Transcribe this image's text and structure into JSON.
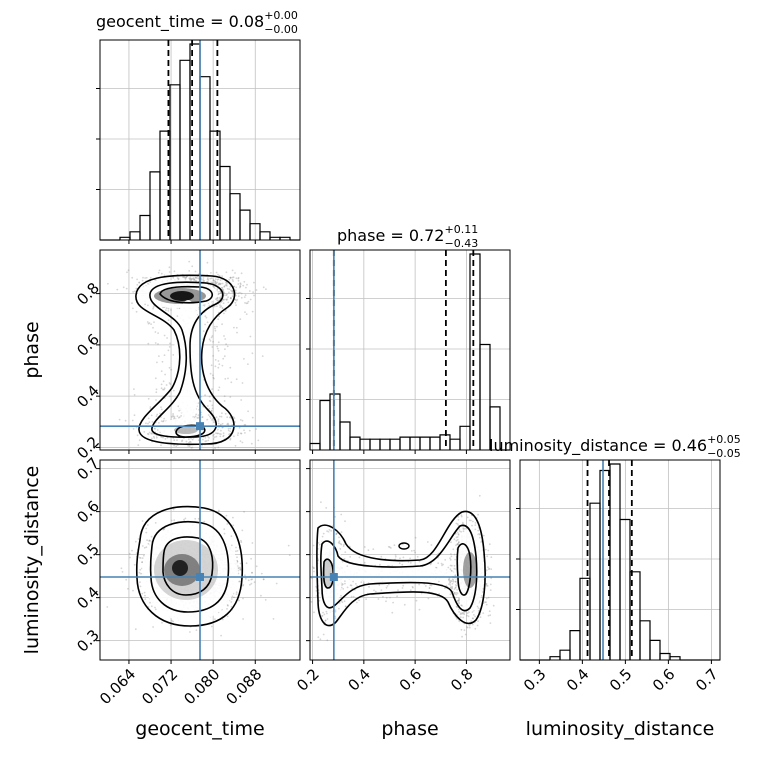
{
  "colors": {
    "truth": "#4682b4",
    "hist": "#000000",
    "grid": "#c0c0c0",
    "samples": "#8a8a8a"
  },
  "titles": [
    {
      "param": "geocent_time",
      "median": "0.08",
      "plus": "+0.00",
      "minus": "−0.00"
    },
    {
      "param": "phase",
      "median": "0.72",
      "plus": "+0.11",
      "minus": "−0.43"
    },
    {
      "param": "luminosity_distance",
      "median": "0.46",
      "plus": "+0.05",
      "minus": "−0.05"
    }
  ],
  "chart_data": {
    "type": "corner",
    "parameters": [
      "geocent_time",
      "phase",
      "luminosity_distance"
    ],
    "axis_labels": {
      "x": [
        "geocent_time",
        "phase",
        "luminosity_distance"
      ],
      "y": [
        "phase",
        "luminosity_distance"
      ]
    },
    "ranges": {
      "geocent_time": [
        0.0585,
        0.0965
      ],
      "phase": [
        0.19,
        0.97
      ],
      "luminosity_distance": [
        0.255,
        0.72
      ]
    },
    "ticks": {
      "geocent_time": [
        0.064,
        0.072,
        0.08,
        0.088
      ],
      "geocent_time_labels": [
        "0.064",
        "0.072",
        "0.080",
        "0.088"
      ],
      "phase": [
        0.2,
        0.4,
        0.6,
        0.8
      ],
      "phase_labels": [
        "0.2",
        "0.4",
        "0.6",
        "0.8"
      ],
      "luminosity_distance": [
        0.3,
        0.4,
        0.5,
        0.6,
        0.7
      ],
      "luminosity_distance_labels": [
        "0.3",
        "0.4",
        "0.5",
        "0.6",
        "0.7"
      ]
    },
    "truths": {
      "geocent_time": 0.0775,
      "phase": 0.283,
      "luminosity_distance": 0.448
    },
    "quantiles": {
      "geocent_time": [
        0.0715,
        0.076,
        0.0808
      ],
      "phase": [
        0.283,
        0.72,
        0.827
      ],
      "luminosity_distance": [
        0.412,
        0.462,
        0.515
      ]
    },
    "histograms": {
      "geocent_time": {
        "edges": [
          0.0585,
          0.0604,
          0.0623,
          0.0642,
          0.0661,
          0.068,
          0.0699,
          0.0718,
          0.0737,
          0.0756,
          0.0775,
          0.0794,
          0.0813,
          0.0832,
          0.0851,
          0.087,
          0.0889,
          0.0908,
          0.0927,
          0.0946,
          0.0965
        ],
        "counts": [
          0,
          0,
          1,
          3,
          9,
          25,
          40,
          57,
          66,
          72,
          60,
          40,
          27,
          17,
          11,
          6,
          3,
          1,
          1,
          0
        ]
      },
      "phase": {
        "edges": [
          0.19,
          0.229,
          0.268,
          0.307,
          0.346,
          0.385,
          0.424,
          0.463,
          0.502,
          0.541,
          0.58,
          0.619,
          0.658,
          0.697,
          0.736,
          0.775,
          0.814,
          0.853,
          0.892,
          0.931,
          0.97
        ],
        "counts": [
          3,
          23,
          26,
          13,
          6,
          5,
          5,
          5,
          5,
          6,
          6,
          6,
          6,
          7,
          5,
          11,
          91,
          49,
          20,
          0
        ]
      },
      "luminosity_distance": {
        "edges": [
          0.255,
          0.27825,
          0.3015,
          0.32475,
          0.348,
          0.37125,
          0.3945,
          0.41775,
          0.441,
          0.46425,
          0.4875,
          0.51075,
          0.534,
          0.55725,
          0.5805,
          0.60375,
          0.627,
          0.65025,
          0.6735,
          0.69675,
          0.72
        ],
        "counts": [
          0,
          0,
          0,
          1,
          3,
          9,
          25,
          48,
          58,
          60,
          43,
          27,
          12,
          6,
          2,
          1,
          0,
          0,
          0,
          0
        ]
      }
    }
  }
}
